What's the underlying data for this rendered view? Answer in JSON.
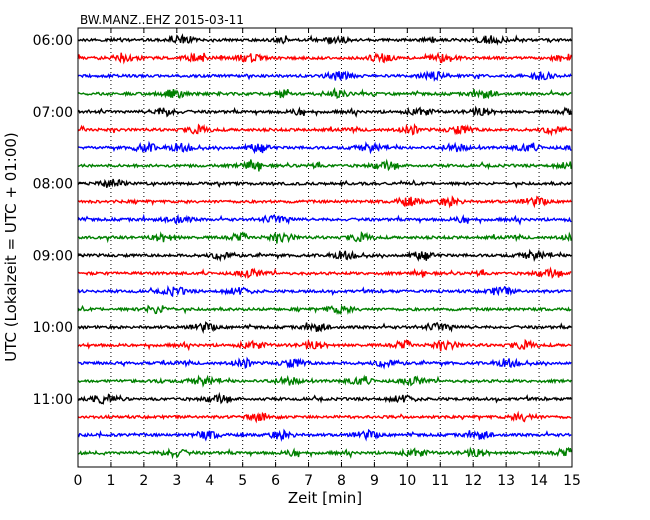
{
  "chart_data": {
    "type": "line",
    "title": "BW.MANZ..EHZ 2015-03-11",
    "xlabel": "Zeit  [min]",
    "ylabel": "UTC (Lokalzeit = UTC + 01:00)",
    "xlim": [
      0,
      15
    ],
    "x_ticks": [
      "0",
      "1",
      "2",
      "3",
      "4",
      "5",
      "6",
      "7",
      "8",
      "9",
      "10",
      "11",
      "12",
      "13",
      "14",
      "15"
    ],
    "y_tick_labels": [
      "06:00",
      "07:00",
      "08:00",
      "09:00",
      "10:00",
      "11:00"
    ],
    "trace_start": "06:00",
    "trace_interval_min": 15,
    "trace_count": 24,
    "trace_colors": [
      "#000000",
      "#ff0000",
      "#0000ff",
      "#008000"
    ],
    "grid": "vertical dotted at each minute",
    "series_note": "seismic waveform traces, 15 min per line"
  }
}
